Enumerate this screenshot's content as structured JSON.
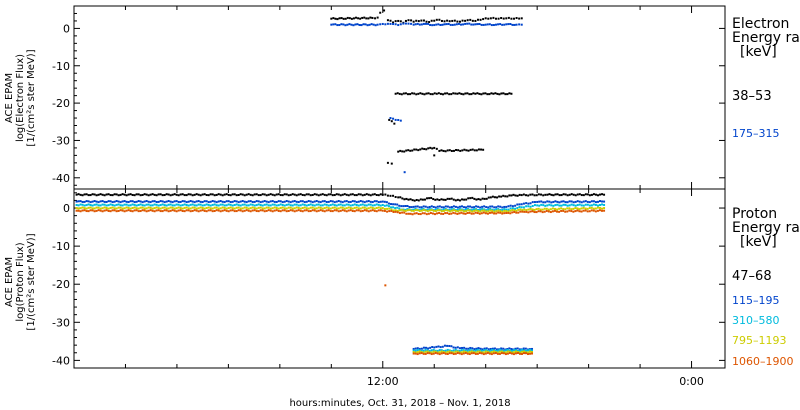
{
  "chart_data": [
    {
      "type": "scatter",
      "ylabel": [
        "ACE EPAM",
        "log(Electron Flux)",
        "[1/(cm²s ster MeV)]"
      ],
      "ylim": [
        -43,
        6
      ],
      "yticks": [
        0,
        -10,
        -20,
        -30,
        -40
      ],
      "legend_title": [
        "Electron",
        "Energy ran",
        "[keV]"
      ],
      "series": [
        {
          "name": "38–53",
          "color": "#000000",
          "points": [
            [
              10.0,
              2.6
            ],
            [
              11.6,
              2.8
            ],
            [
              11.7,
              2.7
            ],
            [
              11.8,
              2.9
            ],
            [
              11.9,
              4.2
            ],
            [
              12.05,
              4.8
            ],
            [
              12.2,
              2.2
            ],
            [
              12.4,
              1.6
            ],
            [
              12.6,
              2.0
            ],
            [
              12.8,
              1.5
            ],
            [
              13.0,
              2.2
            ],
            [
              13.2,
              1.8
            ],
            [
              13.5,
              2.1
            ],
            [
              13.8,
              1.7
            ],
            [
              14.1,
              2.3
            ],
            [
              14.4,
              1.9
            ],
            [
              14.7,
              2.0
            ],
            [
              15.0,
              1.8
            ],
            [
              15.3,
              2.2
            ],
            [
              15.6,
              2.0
            ],
            [
              15.9,
              2.5
            ],
            [
              16.2,
              2.7
            ],
            [
              16.5,
              2.6
            ],
            [
              16.8,
              2.7
            ],
            [
              17.1,
              2.6
            ],
            [
              17.4,
              2.7
            ],
            [
              12.5,
              -17.5
            ],
            [
              14.1,
              -17.5
            ],
            [
              14.9,
              -17.5
            ],
            [
              15.6,
              -17.5
            ],
            [
              16.3,
              -17.5
            ],
            [
              17.0,
              -17.5
            ],
            [
              12.25,
              -24.5
            ],
            [
              12.45,
              -25.5
            ],
            [
              12.6,
              -33.0
            ],
            [
              14.0,
              -32.0
            ],
            [
              14.2,
              -32.8
            ],
            [
              15.9,
              -32.5
            ],
            [
              12.2,
              -36.0
            ],
            [
              12.35,
              -36.2
            ],
            [
              14.0,
              -34.0
            ]
          ]
        },
        {
          "name": "175–315",
          "color": "#0044cc",
          "points": [
            [
              10.0,
              1.0
            ],
            [
              11.8,
              1.0
            ],
            [
              12.1,
              1.1
            ],
            [
              12.3,
              1.2
            ],
            [
              12.6,
              0.9
            ],
            [
              12.9,
              1.3
            ],
            [
              13.2,
              1.0
            ],
            [
              13.6,
              1.2
            ],
            [
              14.0,
              0.9
            ],
            [
              14.4,
              1.1
            ],
            [
              14.8,
              1.0
            ],
            [
              15.2,
              1.2
            ],
            [
              15.6,
              1.1
            ],
            [
              16.0,
              1.0
            ],
            [
              16.4,
              1.0
            ],
            [
              16.8,
              1.1
            ],
            [
              17.2,
              1.0
            ],
            [
              17.4,
              1.0
            ],
            [
              12.3,
              -24.0
            ],
            [
              12.5,
              -24.5
            ],
            [
              12.7,
              -24.7
            ],
            [
              12.85,
              -38.5
            ]
          ]
        }
      ]
    },
    {
      "type": "scatter",
      "xlabel": "hours:minutes, Oct. 31, 2018 – Nov. 1, 2018",
      "xticks": [
        "12:00",
        "0:00"
      ],
      "ylabel": [
        "ACE EPAM",
        "log(Proton Flux)",
        "[1/(cm²s ster MeV)]"
      ],
      "ylim": [
        -42,
        5
      ],
      "yticks": [
        0,
        -10,
        -20,
        -30,
        -40
      ],
      "legend_title": [
        "Proton",
        "Energy ran",
        "[keV]"
      ],
      "series": [
        {
          "name": "47–68",
          "color": "#000000",
          "points": [
            [
              0.1,
              3.5
            ],
            [
              12.0,
              3.5
            ],
            [
              12.3,
              3.2
            ],
            [
              12.6,
              2.8
            ],
            [
              13.0,
              2.2
            ],
            [
              13.4,
              2.0
            ],
            [
              13.8,
              2.6
            ],
            [
              14.2,
              2.1
            ],
            [
              14.6,
              2.4
            ],
            [
              15.0,
              2.0
            ],
            [
              15.4,
              2.6
            ],
            [
              15.8,
              2.2
            ],
            [
              16.2,
              2.8
            ],
            [
              16.6,
              3.0
            ],
            [
              17.0,
              3.3
            ],
            [
              17.4,
              3.4
            ],
            [
              18.4,
              3.5
            ],
            [
              20.6,
              3.5
            ]
          ]
        },
        {
          "name": "115–195",
          "color": "#0044cc",
          "points": [
            [
              0.1,
              1.7
            ],
            [
              12.0,
              1.7
            ],
            [
              12.4,
              1.0
            ],
            [
              12.8,
              0.5
            ],
            [
              13.2,
              0.3
            ],
            [
              16.8,
              0.3
            ],
            [
              17.4,
              1.0
            ],
            [
              18.0,
              1.6
            ],
            [
              20.6,
              1.7
            ],
            [
              13.2,
              -37.0
            ],
            [
              14.0,
              -36.6
            ],
            [
              14.5,
              -36.2
            ],
            [
              15.0,
              -36.8
            ],
            [
              16.2,
              -37.0
            ],
            [
              17.8,
              -37.0
            ]
          ]
        },
        {
          "name": "310–580",
          "color": "#00bbdd",
          "points": [
            [
              0.1,
              0.8
            ],
            [
              12.0,
              0.8
            ],
            [
              12.4,
              0.2
            ],
            [
              12.8,
              -0.4
            ],
            [
              16.8,
              -0.4
            ],
            [
              17.4,
              0.2
            ],
            [
              18.0,
              0.7
            ],
            [
              20.6,
              0.8
            ],
            [
              13.2,
              -37.4
            ],
            [
              17.8,
              -37.4
            ]
          ]
        },
        {
          "name": "795–1193",
          "color": "#cccc00",
          "points": [
            [
              0.1,
              0.0
            ],
            [
              12.0,
              0.0
            ],
            [
              12.5,
              -0.6
            ],
            [
              16.8,
              -0.8
            ],
            [
              17.5,
              -0.4
            ],
            [
              20.6,
              0.0
            ],
            [
              13.2,
              -37.8
            ],
            [
              17.8,
              -37.8
            ]
          ]
        },
        {
          "name": "1060–1900",
          "color": "#dd5500",
          "points": [
            [
              0.1,
              -0.7
            ],
            [
              12.0,
              -0.7
            ],
            [
              12.5,
              -1.0
            ],
            [
              13.0,
              -1.5
            ],
            [
              16.8,
              -1.3
            ],
            [
              17.5,
              -1.0
            ],
            [
              20.6,
              -0.7
            ],
            [
              12.1,
              -20.3
            ],
            [
              13.2,
              -38.2
            ],
            [
              17.8,
              -38.2
            ]
          ]
        }
      ]
    }
  ]
}
